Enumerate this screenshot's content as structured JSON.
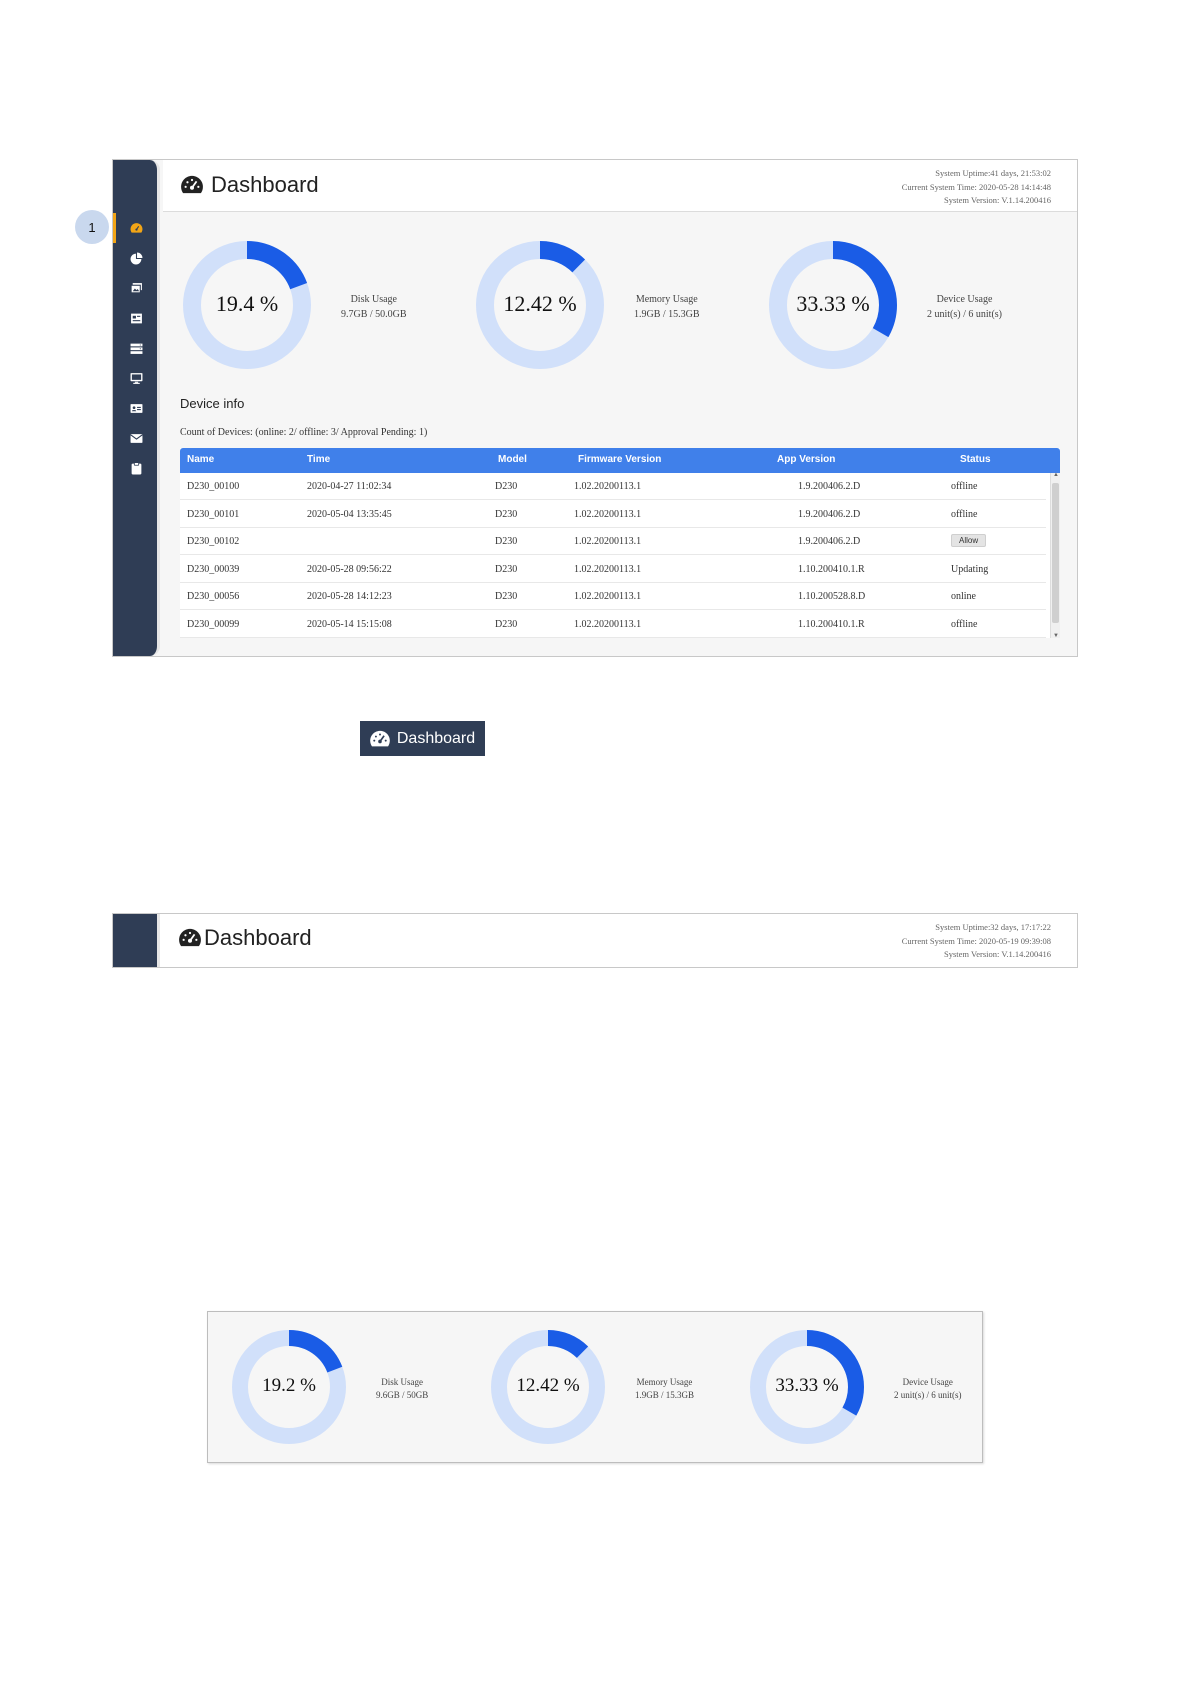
{
  "colors": {
    "sidebar": "#2f3d55",
    "accent": "#1a5ce6",
    "ring_track": "#d1e0fa",
    "table_header": "#4080ea",
    "active_marker": "#f2a516"
  },
  "screenshot1": {
    "title": "Dashboard",
    "sysinfo": [
      "System Uptime:41 days, 21:53:02",
      "Current System Time: 2020-05-28 14:14:48",
      "System Version: V.1.14.200416"
    ],
    "sidebar_icons": [
      "dashboard-icon",
      "pie-chart-icon",
      "gallery-icon",
      "newspaper-icon",
      "server-icon",
      "monitor-icon",
      "id-card-icon",
      "envelope-icon",
      "clipboard-icon"
    ],
    "gauges": [
      {
        "percent": 19.4,
        "pct_label": "19.4 %",
        "label": "Disk Usage",
        "detail": "9.7GB / 50.0GB"
      },
      {
        "percent": 12.42,
        "pct_label": "12.42 %",
        "label": "Memory Usage",
        "detail": "1.9GB / 15.3GB"
      },
      {
        "percent": 33.33,
        "pct_label": "33.33 %",
        "label": "Device Usage",
        "detail": "2 unit(s) / 6 unit(s)"
      }
    ],
    "device_info_title": "Device info",
    "device_count": "Count of Devices: (online: 2/ offline: 3/ Approval Pending: 1)",
    "columns": [
      "Name",
      "Time",
      "Model",
      "Firmware Version",
      "App Version",
      "Status"
    ],
    "rows": [
      {
        "name": "D230_00100",
        "time": "2020-04-27 11:02:34",
        "model": "D230",
        "firmware": "1.02.20200113.1",
        "app": "1.9.200406.2.D",
        "status": "offline",
        "status_type": "text"
      },
      {
        "name": "D230_00101",
        "time": "2020-05-04 13:35:45",
        "model": "D230",
        "firmware": "1.02.20200113.1",
        "app": "1.9.200406.2.D",
        "status": "offline",
        "status_type": "text"
      },
      {
        "name": "D230_00102",
        "time": "",
        "model": "D230",
        "firmware": "1.02.20200113.1",
        "app": "1.9.200406.2.D",
        "status": "Allow",
        "status_type": "button"
      },
      {
        "name": "D230_00039",
        "time": "2020-05-28 09:56:22",
        "model": "D230",
        "firmware": "1.02.20200113.1",
        "app": "1.10.200410.1.R",
        "status": "Updating",
        "status_type": "text"
      },
      {
        "name": "D230_00056",
        "time": "2020-05-28 14:12:23",
        "model": "D230",
        "firmware": "1.02.20200113.1",
        "app": "1.10.200528.8.D",
        "status": "online",
        "status_type": "text"
      },
      {
        "name": "D230_00099",
        "time": "2020-05-14 15:15:08",
        "model": "D230",
        "firmware": "1.02.20200113.1",
        "app": "1.10.200410.1.R",
        "status": "offline",
        "status_type": "text"
      }
    ],
    "callout_number": "1"
  },
  "dashboard_button": {
    "label": "Dashboard"
  },
  "screenshot2": {
    "title": "Dashboard",
    "sysinfo": [
      "System Uptime:32 days, 17:17:22",
      "Current System Time: 2020-05-19 09:39:08",
      "System Version: V.1.14.200416"
    ]
  },
  "screenshot3": {
    "gauges": [
      {
        "percent": 19.2,
        "pct_label": "19.2 %",
        "label": "Disk Usage",
        "detail": "9.6GB / 50GB"
      },
      {
        "percent": 12.42,
        "pct_label": "12.42 %",
        "label": "Memory Usage",
        "detail": "1.9GB / 15.3GB"
      },
      {
        "percent": 33.33,
        "pct_label": "33.33 %",
        "label": "Device Usage",
        "detail": "2 unit(s) / 6 unit(s)"
      }
    ]
  }
}
